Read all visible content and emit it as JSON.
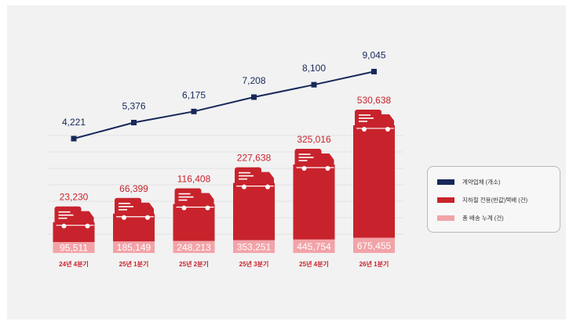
{
  "chart_data": {
    "type": "bar",
    "categories": [
      "24년 4분기",
      "25년 1분기",
      "25년 2분기",
      "25년 3분기",
      "25년 4분기",
      "26년 1분기"
    ],
    "series": [
      {
        "name": "계약업체 (개소)",
        "type": "line",
        "color": "#17285a",
        "values": [
          4221,
          5376,
          6175,
          7208,
          8100,
          9045
        ]
      },
      {
        "name": "지하철 전용(반값)택배 (건)",
        "type": "bar",
        "color": "#c8232c",
        "values": [
          23230,
          66399,
          116408,
          227638,
          325016,
          530638
        ]
      },
      {
        "name": "총 배송 누계 (건)",
        "type": "bar",
        "color": "#f2a3a8",
        "values": [
          95511,
          185149,
          248213,
          353251,
          445754,
          675455
        ]
      }
    ],
    "line_labels": [
      "4,221",
      "5,376",
      "6,175",
      "7,208",
      "8,100",
      "9,045"
    ],
    "bar_labels": [
      "23,230",
      "66,399",
      "116,408",
      "227,638",
      "325,016",
      "530,638"
    ],
    "base_labels": [
      "95,511",
      "185,149",
      "248,213",
      "353,251",
      "445,754",
      "675,455"
    ],
    "legend_placement": "right",
    "grid": true,
    "title": "",
    "xlabel": "",
    "ylabel": ""
  },
  "legend": {
    "items": [
      {
        "label": "계약업체 (개소)",
        "color": "#17285a"
      },
      {
        "label": "지하철 전용(반값)택배 (건)",
        "color": "#c8232c"
      },
      {
        "label": "총 배송 누계 (건)",
        "color": "#f2a3a8"
      }
    ]
  }
}
